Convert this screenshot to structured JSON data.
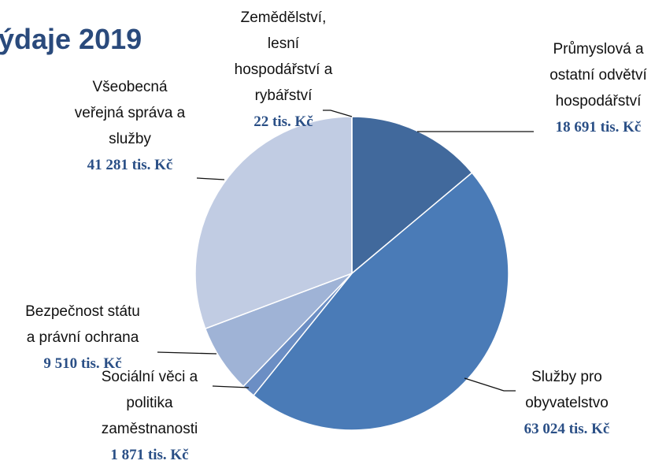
{
  "chart_data": {
    "type": "pie",
    "title": "ýdaje 2019",
    "categories": [
      "Průmyslová a ostatní odvětví hospodářství",
      "Služby pro obyvatelstvo",
      "Sociální věci a politika zaměstnanosti",
      "Bezpečnost státu a právní ochrana",
      "Všeobecná veřejná správa a služby",
      "Zemědělství, lesní hospodářství a rybářství"
    ],
    "values": [
      18691,
      63024,
      1871,
      9510,
      41281,
      22
    ],
    "value_labels": [
      "18 691 tis. Kč",
      "63 024 tis. Kč",
      "1 871 tis. Kč",
      "9 510 tis. Kč",
      "41 281 tis. Kč",
      "22 tis. Kč"
    ],
    "colors": [
      "#41699c",
      "#4a7bb7",
      "#6b8ec4",
      "#9fb3d6",
      "#c1cce3",
      "#d6dded"
    ]
  }
}
